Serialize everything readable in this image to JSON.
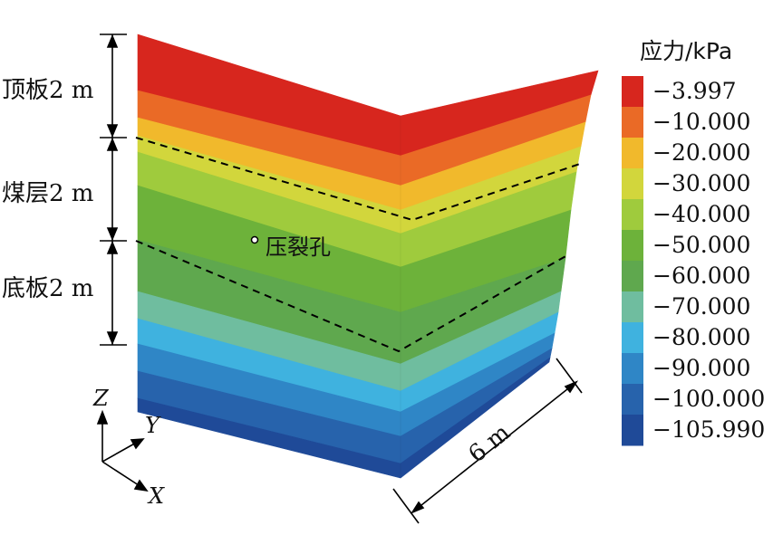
{
  "layers": {
    "roof": "顶板2 m",
    "coal": "煤层2 m",
    "floor": "底板2 m"
  },
  "hole_label": "压裂孔",
  "dimension_label": "6 m",
  "axes": {
    "z": "Z",
    "y": "Y",
    "x": "X"
  },
  "legend": {
    "title": "应力/kPa",
    "entries": [
      {
        "label": "−3.997",
        "color": "#d7261e"
      },
      {
        "label": "−10.000",
        "color": "#ea6a26"
      },
      {
        "label": "−20.000",
        "color": "#f1b92c"
      },
      {
        "label": "−30.000",
        "color": "#d2d63c"
      },
      {
        "label": "−40.000",
        "color": "#9fcb3d"
      },
      {
        "label": "−50.000",
        "color": "#6db23a"
      },
      {
        "label": "−60.000",
        "color": "#5fa84e"
      },
      {
        "label": "−70.000",
        "color": "#6fbd9f"
      },
      {
        "label": "−80.000",
        "color": "#3fb2df"
      },
      {
        "label": "−90.000",
        "color": "#2f86c6"
      },
      {
        "label": "−100.000",
        "color": "#2763ac"
      },
      {
        "label": "−105.990",
        "color": "#1f4a98"
      }
    ]
  }
}
